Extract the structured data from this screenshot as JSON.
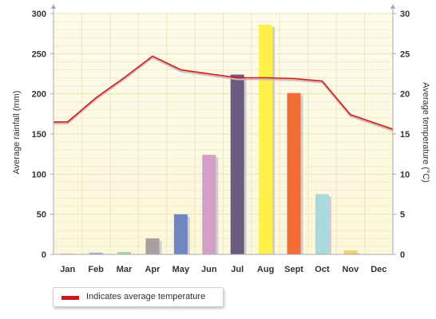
{
  "chart_data": {
    "type": "bar",
    "categories": [
      "Jan",
      "Feb",
      "Mar",
      "Apr",
      "May",
      "Jun",
      "Jul",
      "Aug",
      "Sept",
      "Oct",
      "Nov",
      "Dec"
    ],
    "series": [
      {
        "type": "bar",
        "axis": "left",
        "values": [
          1,
          2,
          3,
          20,
          50,
          124,
          224,
          286,
          201,
          75,
          5,
          0
        ],
        "colors": [
          "#f2b8b8",
          "#9aa7c8",
          "#a8d8a0",
          "#a8a0a0",
          "#6f86be",
          "#d49fc7",
          "#6a5c7e",
          "#fff04a",
          "#f16e37",
          "#a6dade",
          "#f6d170",
          "#e6e6e6"
        ]
      },
      {
        "type": "line",
        "axis": "right",
        "color": "#cc1b1b",
        "values": [
          16.5,
          19.5,
          22,
          24.7,
          23,
          22.5,
          22,
          22,
          21.9,
          21.6,
          17.4,
          15.6
        ]
      }
    ],
    "ylabel": "Average rainfall (mm)",
    "ylim": [
      0,
      300
    ],
    "yticks": [
      0,
      50,
      100,
      150,
      200,
      250,
      300
    ],
    "y2label": "Average temperature (°C)",
    "y2lim": [
      0,
      30
    ],
    "y2ticks": [
      0,
      5,
      10,
      15,
      20,
      25,
      30
    ],
    "grid": true,
    "legend": {
      "placement": "bottom-left",
      "text": "Indicates average temperature",
      "color": "#cc1b1b"
    }
  }
}
